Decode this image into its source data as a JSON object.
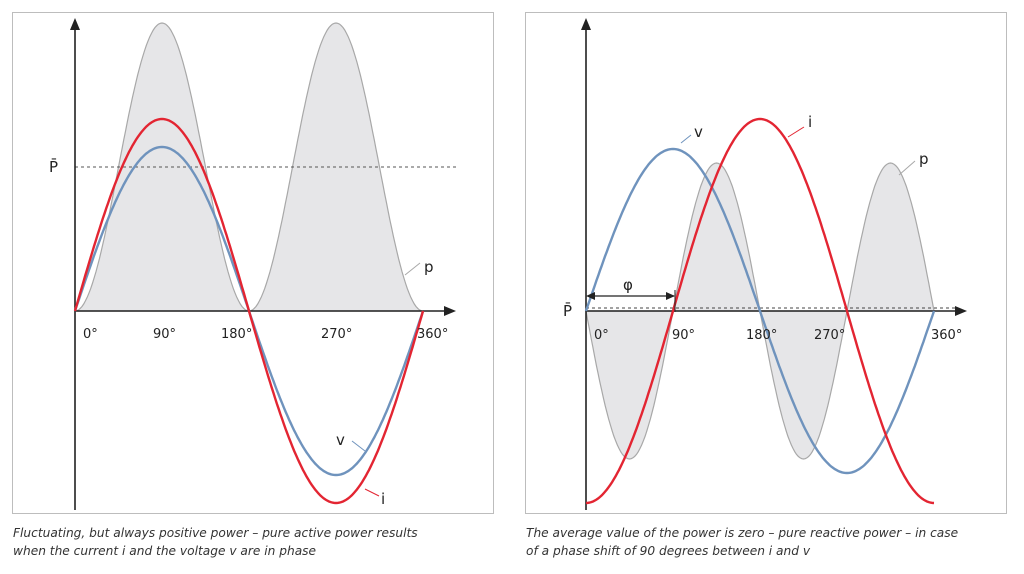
{
  "diagrams": [
    {
      "id": "in-phase",
      "axis_labels": {
        "p_bar": "P̄"
      },
      "tick_labels": [
        "0°",
        "90°",
        "180°",
        "270°",
        "360°"
      ],
      "curve_labels": {
        "v": "v",
        "i": "i",
        "p": "p"
      },
      "caption_lines": [
        "Fluctuating, but always positive power – pure active power results",
        "when the current i and the voltage v are in phase"
      ]
    },
    {
      "id": "phase-shift",
      "axis_labels": {
        "p_bar": "P̄",
        "phi": "φ"
      },
      "tick_labels": [
        "0°",
        "90°",
        "180°",
        "270°",
        "360°"
      ],
      "curve_labels": {
        "v": "v",
        "i": "i",
        "p": "p"
      },
      "caption_lines": [
        "The average value of the power is zero – pure reactive power – in case",
        "of a phase shift of 90 degrees between i and v"
      ]
    }
  ],
  "colors": {
    "voltage": "#6f93bd",
    "current": "#e32532",
    "power_fill": "#e6e6e8",
    "power_stroke": "#a8a8a8",
    "axis": "#222222"
  }
}
